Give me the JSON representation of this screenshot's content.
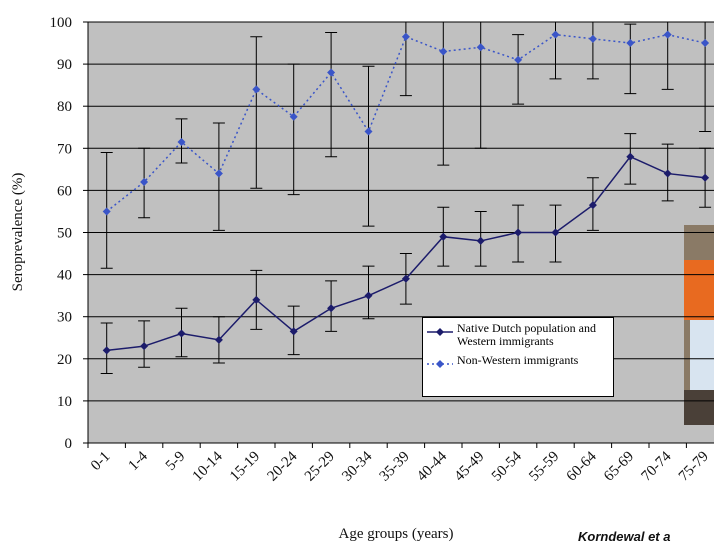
{
  "chart_data": {
    "type": "line",
    "x_label": "Age groups (years)",
    "y_label": "Seroprevalence (%)",
    "source": "Korndewal et a",
    "categories": [
      "0-1",
      "1-4",
      "5-9",
      "10-14",
      "15-19",
      "20-24",
      "25-29",
      "30-34",
      "35-39",
      "40-44",
      "45-49",
      "50-54",
      "55-59",
      "60-64",
      "65-69",
      "70-74",
      "75-79"
    ],
    "series": [
      {
        "name": "Native Dutch population and Western immigrants",
        "color": "#1c1c6b",
        "dash": false,
        "values": [
          22,
          23,
          26,
          24.5,
          34,
          26.5,
          32,
          35,
          39,
          49,
          48,
          50,
          50,
          56.5,
          68,
          64,
          63
        ],
        "ci_low": [
          16.5,
          18,
          20.5,
          19,
          27,
          21,
          26.5,
          29.5,
          33,
          42,
          42,
          43,
          43,
          50.5,
          61.5,
          57.5,
          56
        ],
        "ci_high": [
          28.5,
          29,
          32,
          30,
          41,
          32.5,
          38.5,
          42,
          45,
          56,
          55,
          56.5,
          56.5,
          63,
          73.5,
          71,
          70
        ]
      },
      {
        "name": "Non-Western immigrants",
        "color": "#3a55c8",
        "dash": true,
        "values": [
          55,
          62,
          71.5,
          64,
          84,
          77.5,
          88,
          74,
          96.5,
          93,
          94,
          91,
          97,
          96,
          95,
          97,
          95
        ],
        "ci_low": [
          41.5,
          53.5,
          66.5,
          50.5,
          60.5,
          59,
          68,
          51.5,
          82.5,
          66,
          70,
          80.5,
          86.5,
          86.5,
          83,
          84,
          74
        ],
        "ci_high": [
          69,
          70,
          77,
          76,
          96.5,
          90,
          97.5,
          89.5,
          100,
          100,
          100,
          97,
          100,
          100,
          99.5,
          100,
          100
        ]
      }
    ],
    "ylim": [
      0,
      100
    ],
    "yticks": [
      0,
      10,
      20,
      30,
      40,
      50,
      60,
      70,
      80,
      90,
      100
    ],
    "grid": true
  }
}
